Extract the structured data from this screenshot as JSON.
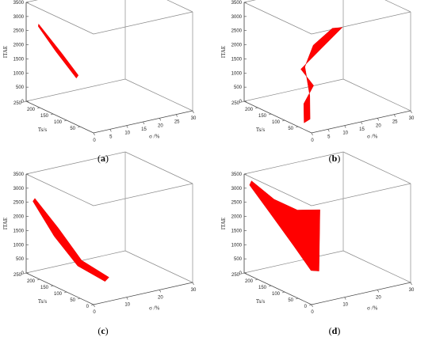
{
  "chart_data": [
    {
      "type": "area",
      "panel": "(a)",
      "panel_letter": "a",
      "xlabel": "σ /%",
      "ylabel": "Ts/s",
      "zlabel": "ITAE",
      "xlim": [
        0,
        30
      ],
      "ylim": [
        0,
        250
      ],
      "zlim": [
        0,
        3500
      ],
      "xticks": [
        0,
        5,
        10,
        15,
        20,
        25,
        30
      ],
      "yticks": [
        50,
        100,
        150,
        200,
        250
      ],
      "zticks": [
        0,
        500,
        1000,
        1500,
        2000,
        2500,
        3000,
        3500
      ],
      "surface": {
        "upper": [
          [
            0.5,
            210,
            2900
          ],
          [
            3.5,
            160,
            2000
          ],
          [
            6,
            130,
            1300
          ]
        ],
        "lower": [
          [
            0,
            205,
            2850
          ],
          [
            2,
            165,
            2100
          ],
          [
            5,
            125,
            1250
          ]
        ]
      }
    },
    {
      "type": "area",
      "panel": "(b)",
      "panel_letter": "b",
      "xlabel": "σ /%",
      "ylabel": "Ts/s",
      "zlabel": "ITAE",
      "xlim": [
        0,
        30
      ],
      "ylim": [
        0,
        250
      ],
      "zlim": [
        0,
        3500
      ],
      "xticks": [
        0,
        5,
        10,
        15,
        20,
        25,
        30
      ],
      "yticks": [
        50,
        100,
        150,
        200,
        250
      ],
      "zticks": [
        0,
        500,
        1000,
        1500,
        2000,
        2500,
        3000,
        3500
      ],
      "surface": {
        "upper": [
          [
            2,
            30,
            300
          ],
          [
            6,
            80,
            800
          ],
          [
            9,
            135,
            1500
          ],
          [
            14,
            165,
            2000
          ],
          [
            21,
            180,
            2350
          ],
          [
            24,
            180,
            2300
          ]
        ],
        "lower": [
          [
            1,
            40,
            150
          ],
          [
            5,
            90,
            500
          ],
          [
            10,
            115,
            900
          ],
          [
            9,
            150,
            1350
          ],
          [
            17,
            170,
            1800
          ]
        ]
      }
    },
    {
      "type": "area",
      "panel": "(c)",
      "panel_letter": "c",
      "xlabel": "σ /%",
      "ylabel": "Ts/s",
      "zlabel": "ITAE",
      "xlim": [
        0,
        30
      ],
      "ylim": [
        0,
        250
      ],
      "zlim": [
        0,
        3500
      ],
      "xticks": [
        0,
        10,
        20,
        30
      ],
      "yticks": [
        0,
        50,
        100,
        150,
        200,
        250
      ],
      "zticks": [
        0,
        500,
        1000,
        1500,
        2000,
        2500,
        3000,
        3500
      ],
      "surface": {
        "upper": [
          [
            1,
            230,
            2700
          ],
          [
            4,
            180,
            1800
          ],
          [
            7,
            130,
            800
          ],
          [
            12,
            90,
            250
          ]
        ],
        "lower": [
          [
            0,
            225,
            2650
          ],
          [
            2,
            170,
            1600
          ],
          [
            5,
            120,
            700
          ],
          [
            10,
            80,
            200
          ]
        ]
      }
    },
    {
      "type": "area",
      "panel": "(d)",
      "panel_letter": "d",
      "xlabel": "σ /%",
      "ylabel": "Ts/s",
      "zlabel": "ITAE",
      "xlim": [
        0,
        30
      ],
      "ylim": [
        0,
        250
      ],
      "zlim": [
        0,
        3500
      ],
      "xticks": [
        0,
        10,
        20,
        30
      ],
      "yticks": [
        0,
        50,
        100,
        150,
        200,
        250
      ],
      "zticks": [
        0,
        500,
        1000,
        1500,
        2000,
        2500,
        3000,
        3500
      ],
      "surface": {
        "upper": [
          [
            1,
            235,
            3300
          ],
          [
            5,
            200,
            2700
          ],
          [
            10,
            175,
            2300
          ],
          [
            16,
            165,
            2200
          ]
        ],
        "lower": [
          [
            0,
            230,
            3200
          ],
          [
            3,
            190,
            2300
          ],
          [
            6,
            140,
            1300
          ],
          [
            8,
            100,
            550
          ],
          [
            10,
            95,
            500
          ]
        ]
      }
    }
  ]
}
